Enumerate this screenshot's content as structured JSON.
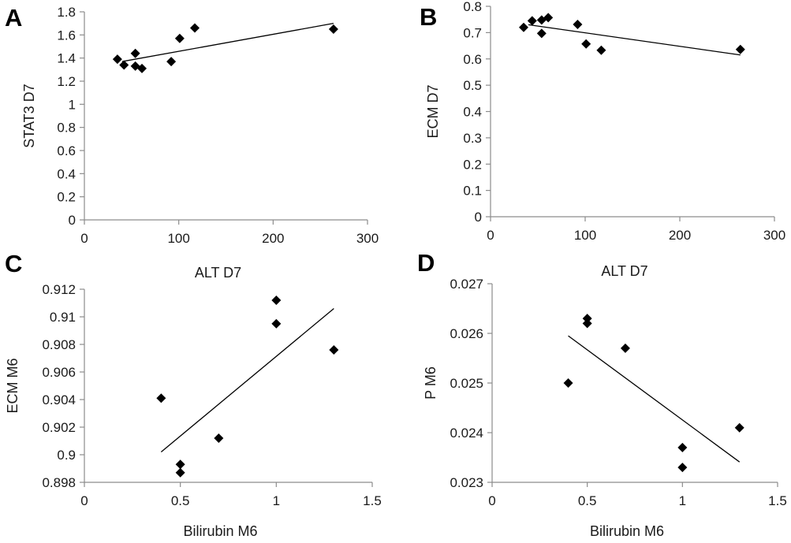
{
  "chart_data": [
    {
      "type": "scatter",
      "panel": "A",
      "xlabel": "ALT D7",
      "ylabel": "STAT3 D7",
      "xlim": [
        0,
        300
      ],
      "ylim": [
        0,
        1.8
      ],
      "xticks": [
        "0",
        "100",
        "200",
        "300"
      ],
      "yticks": [
        "0",
        "0.2",
        "0.4",
        "0.6",
        "0.8",
        "1",
        "1.2",
        "1.4",
        "1.6",
        "1.8"
      ],
      "points": [
        {
          "x": 35,
          "y": 1.39
        },
        {
          "x": 42,
          "y": 1.34
        },
        {
          "x": 54,
          "y": 1.44
        },
        {
          "x": 54,
          "y": 1.33
        },
        {
          "x": 61,
          "y": 1.31
        },
        {
          "x": 92,
          "y": 1.37
        },
        {
          "x": 101,
          "y": 1.57
        },
        {
          "x": 117,
          "y": 1.66
        },
        {
          "x": 264,
          "y": 1.65
        }
      ],
      "trendline": {
        "x": [
          40,
          264
        ],
        "y": [
          1.37,
          1.7
        ]
      },
      "grid": false,
      "legend": "none"
    },
    {
      "type": "scatter",
      "panel": "B",
      "xlabel": "ALT D7",
      "ylabel": "ECM D7",
      "xlim": [
        0,
        300
      ],
      "ylim": [
        0,
        0.8
      ],
      "xticks": [
        "0",
        "100",
        "200",
        "300"
      ],
      "yticks": [
        "0",
        "0.1",
        "0.2",
        "0.3",
        "0.4",
        "0.5",
        "0.6",
        "0.7",
        "0.8"
      ],
      "points": [
        {
          "x": 35,
          "y": 0.72
        },
        {
          "x": 44,
          "y": 0.745
        },
        {
          "x": 54,
          "y": 0.748
        },
        {
          "x": 54,
          "y": 0.697
        },
        {
          "x": 61,
          "y": 0.757
        },
        {
          "x": 92,
          "y": 0.731
        },
        {
          "x": 101,
          "y": 0.657
        },
        {
          "x": 117,
          "y": 0.633
        },
        {
          "x": 264,
          "y": 0.636
        }
      ],
      "trendline": {
        "x": [
          40,
          264
        ],
        "y": [
          0.73,
          0.615
        ]
      },
      "grid": false,
      "legend": "none"
    },
    {
      "type": "scatter",
      "panel": "C",
      "xlabel": "Bilirubin M6",
      "ylabel": "ECM M6",
      "xlim": [
        0,
        1.5
      ],
      "ylim": [
        0.898,
        0.912
      ],
      "xticks": [
        "0",
        "0.5",
        "1",
        "1.5"
      ],
      "yticks": [
        "0.898",
        "0.9",
        "0.902",
        "0.904",
        "0.906",
        "0.908",
        "0.91",
        "0.912"
      ],
      "points": [
        {
          "x": 0.4,
          "y": 0.9041
        },
        {
          "x": 0.5,
          "y": 0.8993
        },
        {
          "x": 0.5,
          "y": 0.8987
        },
        {
          "x": 0.7,
          "y": 0.9012
        },
        {
          "x": 1.0,
          "y": 0.9112
        },
        {
          "x": 1.0,
          "y": 0.9095
        },
        {
          "x": 1.3,
          "y": 0.9076
        }
      ],
      "trendline": {
        "x": [
          0.4,
          1.3
        ],
        "y": [
          0.9002,
          0.9106
        ]
      },
      "grid": false,
      "legend": "none"
    },
    {
      "type": "scatter",
      "panel": "D",
      "xlabel": "Bilirubin M6",
      "ylabel": "P M6",
      "xlim": [
        0,
        1.5
      ],
      "ylim": [
        0.023,
        0.027
      ],
      "xticks": [
        "0",
        "0.5",
        "1",
        "1.5"
      ],
      "yticks": [
        "0.023",
        "0.024",
        "0.025",
        "0.026",
        "0.027"
      ],
      "points": [
        {
          "x": 0.4,
          "y": 0.025
        },
        {
          "x": 0.5,
          "y": 0.0263
        },
        {
          "x": 0.5,
          "y": 0.0262
        },
        {
          "x": 0.7,
          "y": 0.0257
        },
        {
          "x": 1.0,
          "y": 0.0237
        },
        {
          "x": 1.0,
          "y": 0.0233
        },
        {
          "x": 1.3,
          "y": 0.0241
        }
      ],
      "trendline": {
        "x": [
          0.4,
          1.3
        ],
        "y": [
          0.02595,
          0.02341
        ]
      },
      "grid": false,
      "legend": "none"
    }
  ]
}
